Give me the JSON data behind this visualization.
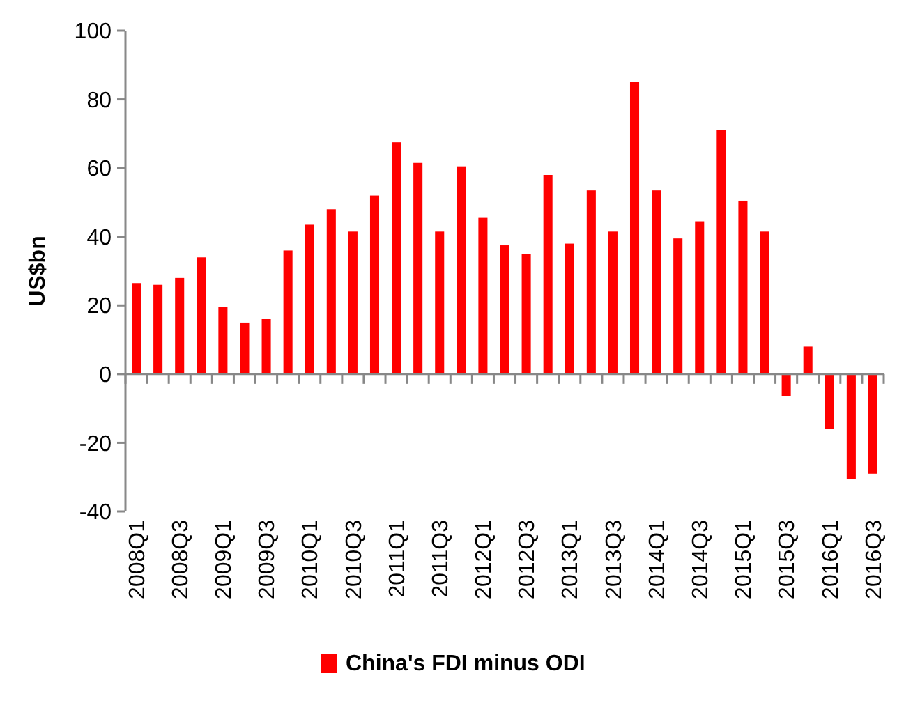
{
  "chart_data": {
    "type": "bar",
    "ylabel": "US$bn",
    "categories": [
      "2008Q1",
      null,
      "2008Q3",
      null,
      "2009Q1",
      null,
      "2009Q3",
      null,
      "2010Q1",
      null,
      "2010Q3",
      null,
      "2011Q1",
      null,
      "2011Q3",
      null,
      "2012Q1",
      null,
      "2012Q3",
      null,
      "2013Q1",
      null,
      "2013Q3",
      null,
      "2014Q1",
      null,
      "2014Q3",
      null,
      "2015Q1",
      null,
      "2015Q3",
      null,
      "2016Q1",
      null,
      "2016Q3"
    ],
    "series": [
      {
        "name": "China's FDI minus ODI",
        "color": "#ff0000",
        "values": [
          26.5,
          26,
          28,
          34,
          19.5,
          15,
          16,
          36,
          43.5,
          48,
          41.5,
          52,
          67.5,
          61.5,
          41.5,
          60.5,
          45.5,
          37.5,
          35,
          58,
          38,
          53.5,
          41.5,
          85,
          53.5,
          39.5,
          44.5,
          71,
          50.5,
          41.5,
          -6.5,
          8,
          -16,
          -30.5,
          -29
        ]
      }
    ],
    "ylim": [
      -40,
      100
    ],
    "yticks": [
      -40,
      -20,
      0,
      20,
      40,
      60,
      80,
      100
    ],
    "legend": "bottom"
  }
}
